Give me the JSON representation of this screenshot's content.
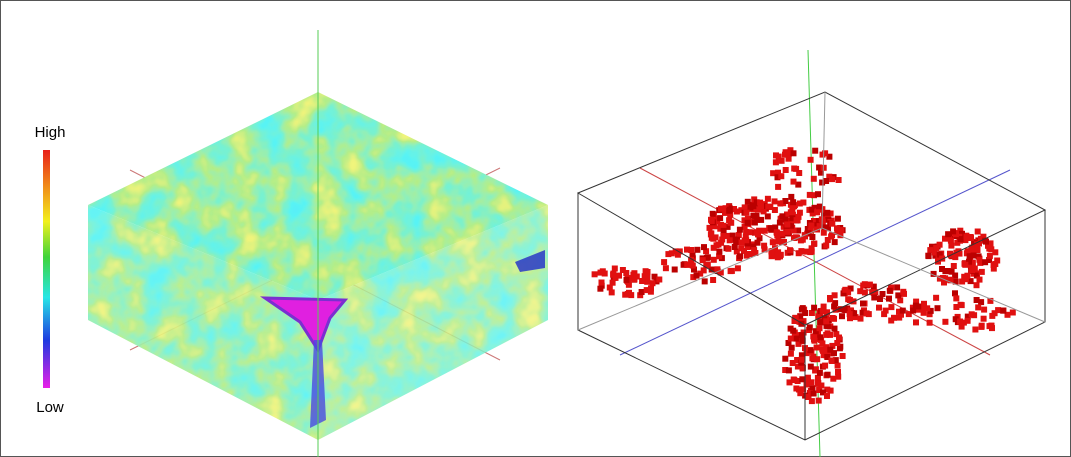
{
  "colorbar": {
    "high_label": "High",
    "low_label": "Low"
  }
}
